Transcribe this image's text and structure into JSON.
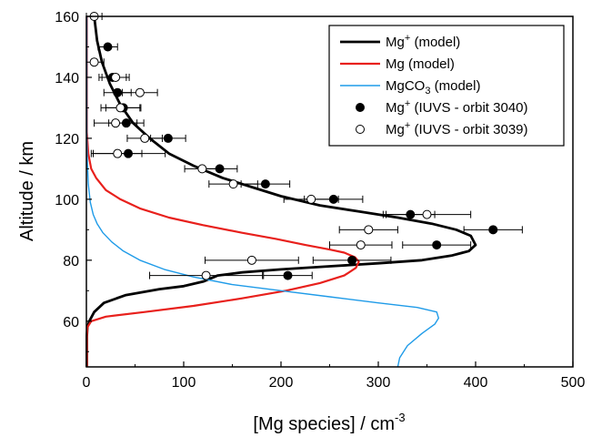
{
  "chart_data": {
    "type": "line",
    "xlabel": "[Mg species] / cm",
    "xlabel_superscript": "-3",
    "ylabel": "Altitude / km",
    "xlim": [
      0,
      500
    ],
    "ylim": [
      45,
      160
    ],
    "x_ticks": [
      0,
      100,
      200,
      300,
      400,
      500
    ],
    "y_ticks": [
      60,
      80,
      100,
      120,
      140,
      160
    ],
    "legend_position": "top-right",
    "grid": false,
    "series": [
      {
        "name": "Mg",
        "name_sup": "+",
        "name_sub": "",
        "name_suffix": " (model)",
        "kind": "line",
        "color": "#000000",
        "points": [
          [
            0.5,
            45
          ],
          [
            0.5,
            55
          ],
          [
            1,
            58
          ],
          [
            3,
            60
          ],
          [
            8,
            63
          ],
          [
            18,
            66
          ],
          [
            40,
            68.5
          ],
          [
            75,
            70.5
          ],
          [
            100,
            71.5
          ],
          [
            120,
            73
          ],
          [
            135,
            75
          ],
          [
            160,
            76
          ],
          [
            200,
            77
          ],
          [
            250,
            78
          ],
          [
            300,
            79
          ],
          [
            345,
            80
          ],
          [
            375,
            81.5
          ],
          [
            393,
            83
          ],
          [
            400,
            85
          ],
          [
            395,
            88
          ],
          [
            380,
            90
          ],
          [
            355,
            92
          ],
          [
            320,
            94
          ],
          [
            280,
            96
          ],
          [
            240,
            98
          ],
          [
            200,
            101
          ],
          [
            170,
            104
          ],
          [
            140,
            107
          ],
          [
            110,
            111
          ],
          [
            85,
            115
          ],
          [
            65,
            120
          ],
          [
            48,
            125
          ],
          [
            35,
            131
          ],
          [
            24,
            138
          ],
          [
            16,
            145
          ],
          [
            11,
            152
          ],
          [
            8,
            160
          ]
        ]
      },
      {
        "name": "Mg",
        "name_sup": "",
        "name_sub": "",
        "name_suffix": " (model)",
        "kind": "line",
        "color": "#e8201c",
        "points": [
          [
            0.5,
            45
          ],
          [
            0.5,
            55
          ],
          [
            1,
            58
          ],
          [
            5,
            60
          ],
          [
            20,
            61.5
          ],
          [
            60,
            63
          ],
          [
            110,
            65
          ],
          [
            160,
            67.5
          ],
          [
            205,
            70
          ],
          [
            240,
            72.5
          ],
          [
            265,
            75
          ],
          [
            277,
            77.5
          ],
          [
            280,
            79.5
          ],
          [
            276,
            81
          ],
          [
            265,
            82.5
          ],
          [
            250,
            83.5
          ],
          [
            225,
            85
          ],
          [
            195,
            87
          ],
          [
            160,
            89
          ],
          [
            120,
            91.5
          ],
          [
            85,
            94
          ],
          [
            55,
            97
          ],
          [
            35,
            100
          ],
          [
            20,
            103
          ],
          [
            10,
            107
          ],
          [
            5,
            110
          ],
          [
            2,
            115
          ],
          [
            0.5,
            122
          ],
          [
            0.5,
            160
          ]
        ]
      },
      {
        "name": "MgCO",
        "name_sup": "",
        "name_sub": "3",
        "name_suffix": " (model)",
        "kind": "line",
        "color": "#1f9be8",
        "points": [
          [
            320,
            45
          ],
          [
            322,
            48
          ],
          [
            330,
            52
          ],
          [
            345,
            56
          ],
          [
            358,
            59
          ],
          [
            362,
            61
          ],
          [
            360,
            63
          ],
          [
            340,
            64.5
          ],
          [
            300,
            66
          ],
          [
            250,
            68
          ],
          [
            200,
            70
          ],
          [
            150,
            72
          ],
          [
            110,
            74.5
          ],
          [
            80,
            77
          ],
          [
            55,
            80
          ],
          [
            38,
            83
          ],
          [
            26,
            86
          ],
          [
            17,
            89
          ],
          [
            11,
            92
          ],
          [
            7,
            95
          ],
          [
            4,
            99
          ],
          [
            2,
            105
          ],
          [
            1,
            112
          ],
          [
            0.5,
            120
          ],
          [
            0.5,
            160
          ]
        ]
      },
      {
        "name": "Mg",
        "name_sup": "+",
        "name_sub": "",
        "name_suffix": " (IUVS - orbit 3040)",
        "kind": "points",
        "marker": "filled",
        "color": "#000000",
        "points": [
          [
            207,
            75,
            25
          ],
          [
            273,
            80,
            40
          ],
          [
            360,
            85,
            35
          ],
          [
            418,
            90,
            30
          ],
          [
            333,
            95,
            25
          ],
          [
            254,
            100,
            30
          ],
          [
            184,
            105,
            25
          ],
          [
            137,
            110,
            18
          ],
          [
            84,
            120,
            18
          ],
          [
            43,
            115,
            38
          ],
          [
            41,
            125,
            18
          ],
          [
            38,
            130,
            18
          ],
          [
            32,
            135,
            14
          ],
          [
            27,
            140,
            14
          ],
          [
            22,
            150,
            10
          ]
        ]
      },
      {
        "name": "Mg",
        "name_sup": "+",
        "name_sub": "",
        "name_suffix": " (IUVS - orbit 3039)",
        "kind": "points",
        "marker": "open",
        "color": "#000000",
        "points": [
          [
            123,
            75,
            58
          ],
          [
            170,
            80,
            48
          ],
          [
            282,
            85,
            32
          ],
          [
            290,
            90,
            30
          ],
          [
            350,
            95,
            45
          ],
          [
            231,
            100,
            28
          ],
          [
            151,
            105,
            25
          ],
          [
            119,
            110,
            18
          ],
          [
            60,
            120,
            18
          ],
          [
            32,
            115,
            25
          ],
          [
            30,
            125,
            22
          ],
          [
            35,
            130,
            20
          ],
          [
            55,
            135,
            18
          ],
          [
            30,
            140,
            14
          ],
          [
            8,
            145,
            10
          ],
          [
            8,
            160,
            8
          ]
        ]
      }
    ]
  }
}
